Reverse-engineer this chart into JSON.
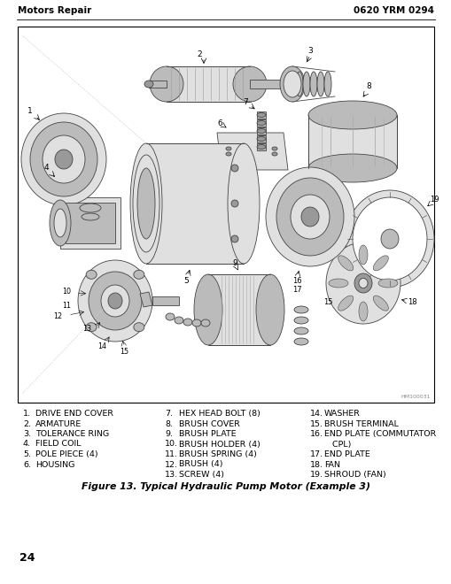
{
  "header_left": "Motors Repair",
  "header_right": "0620 YRM 0294",
  "image_label": "HM100031",
  "parts_col1_nums": [
    "1.",
    "2.",
    "3.",
    "4.",
    "5.",
    "6."
  ],
  "parts_col1_text": [
    "DRIVE END COVER",
    "ARMATURE",
    "TOLERANCE RING",
    "FIELD COIL",
    "POLE PIECE (4)",
    "HOUSING"
  ],
  "parts_col2_nums": [
    "7.",
    "8.",
    "9.",
    "10.",
    "11.",
    "12.",
    "13."
  ],
  "parts_col2_text": [
    "HEX HEAD BOLT (8)",
    "BRUSH COVER",
    "BRUSH PLATE",
    "BRUSH HOLDER (4)",
    "BRUSH SPRING (4)",
    "BRUSH (4)",
    "SCREW (4)"
  ],
  "parts_col3_nums": [
    "14.",
    "15.",
    "16.",
    "",
    "17.",
    "18.",
    "19."
  ],
  "parts_col3_text": [
    "WASHER",
    "BRUSH TERMINAL",
    "END PLATE (COMMUTATOR",
    "   CPL)",
    "END PLATE",
    "FAN",
    "SHROUD (FAN)"
  ],
  "figure_caption": "Figure 13. Typical Hydraulic Pump Motor (Example 3)",
  "page_number": "24",
  "bg_color": "#ffffff",
  "text_color": "#000000",
  "line_color": "#444444",
  "fill_light": "#e0e0e0",
  "fill_medium": "#bbbbbb",
  "fill_dark": "#999999"
}
